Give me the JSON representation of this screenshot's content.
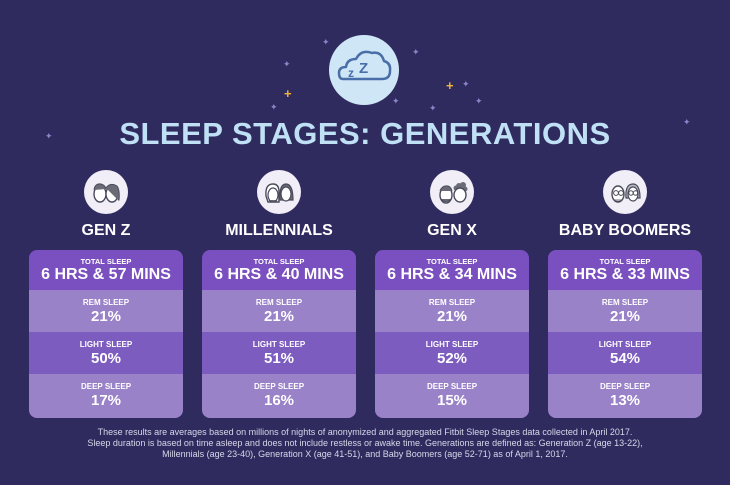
{
  "title": "SLEEP STAGES: GENERATIONS",
  "icons": {
    "badge": "sleep-cloud-zz-icon",
    "decor": [
      "star-icon",
      "sparkle-plus-icon"
    ]
  },
  "colors": {
    "background": "#2f2b5e",
    "title": "#bfe0f5",
    "total_row": "#7a4fbf",
    "light_row": "#9a82c9",
    "dark_row": "#7d5cbf"
  },
  "generations": [
    {
      "name": "GEN Z",
      "total_label": "TOTAL SLEEP",
      "total_value": "6 HRS & 57 MINS",
      "rem_label": "REM SLEEP",
      "rem_value": "21%",
      "light_label": "LIGHT SLEEP",
      "light_value": "50%",
      "deep_label": "DEEP SLEEP",
      "deep_value": "17%"
    },
    {
      "name": "MILLENNIALS",
      "total_label": "TOTAL SLEEP",
      "total_value": "6 HRS & 40 MINS",
      "rem_label": "REM SLEEP",
      "rem_value": "21%",
      "light_label": "LIGHT SLEEP",
      "light_value": "51%",
      "deep_label": "DEEP SLEEP",
      "deep_value": "16%"
    },
    {
      "name": "GEN X",
      "total_label": "TOTAL SLEEP",
      "total_value": "6 HRS & 34 MINS",
      "rem_label": "REM SLEEP",
      "rem_value": "21%",
      "light_label": "LIGHT SLEEP",
      "light_value": "52%",
      "deep_label": "DEEP SLEEP",
      "deep_value": "15%"
    },
    {
      "name": "BABY BOOMERS",
      "total_label": "TOTAL SLEEP",
      "total_value": "6 HRS & 33 MINS",
      "rem_label": "REM SLEEP",
      "rem_value": "21%",
      "light_label": "LIGHT SLEEP",
      "light_value": "54%",
      "deep_label": "DEEP SLEEP",
      "deep_value": "13%"
    }
  ],
  "footnote": [
    "These results are averages based on millions of nights of anonymized and aggregated Fitbit Sleep Stages data collected in April 2017.",
    "Sleep duration is based on time asleep and does not include restless or awake time. Generations are defined as: Generation Z (age 13-22),",
    "Millennials (age 23-40), Generation X (age 41-51), and Baby Boomers (age 52-71) as of April 1, 2017."
  ]
}
